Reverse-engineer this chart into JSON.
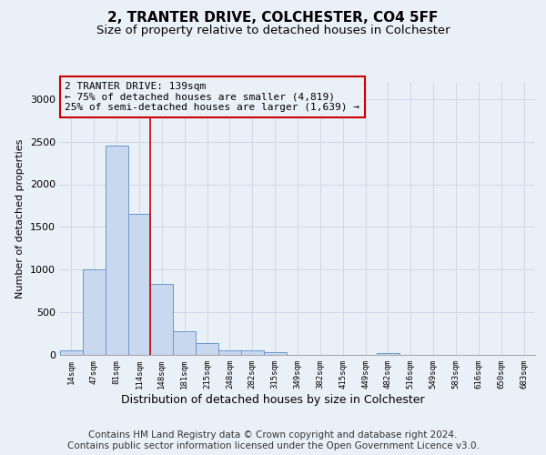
{
  "title": "2, TRANTER DRIVE, COLCHESTER, CO4 5FF",
  "subtitle": "Size of property relative to detached houses in Colchester",
  "xlabel": "Distribution of detached houses by size in Colchester",
  "ylabel": "Number of detached properties",
  "categories": [
    "14sqm",
    "47sqm",
    "81sqm",
    "114sqm",
    "148sqm",
    "181sqm",
    "215sqm",
    "248sqm",
    "282sqm",
    "315sqm",
    "349sqm",
    "382sqm",
    "415sqm",
    "449sqm",
    "482sqm",
    "516sqm",
    "549sqm",
    "583sqm",
    "616sqm",
    "650sqm",
    "683sqm"
  ],
  "values": [
    55,
    1000,
    2450,
    1650,
    830,
    275,
    140,
    50,
    50,
    30,
    0,
    0,
    0,
    0,
    25,
    0,
    0,
    0,
    0,
    0,
    0
  ],
  "bar_color": "#c8d8ee",
  "bar_edge_color": "#6699cc",
  "grid_color": "#d0d8e8",
  "background_color": "#eaf0f8",
  "vline_x": 3.5,
  "vline_color": "#cc0000",
  "annotation_text": "2 TRANTER DRIVE: 139sqm\n← 75% of detached houses are smaller (4,819)\n25% of semi-detached houses are larger (1,639) →",
  "annotation_box_color": "#cc0000",
  "ylim": [
    0,
    3200
  ],
  "yticks": [
    0,
    500,
    1000,
    1500,
    2000,
    2500,
    3000
  ],
  "footer_line1": "Contains HM Land Registry data © Crown copyright and database right 2024.",
  "footer_line2": "Contains public sector information licensed under the Open Government Licence v3.0.",
  "title_fontsize": 11,
  "subtitle_fontsize": 9.5,
  "footer_fontsize": 7.5,
  "annot_fontsize": 8
}
